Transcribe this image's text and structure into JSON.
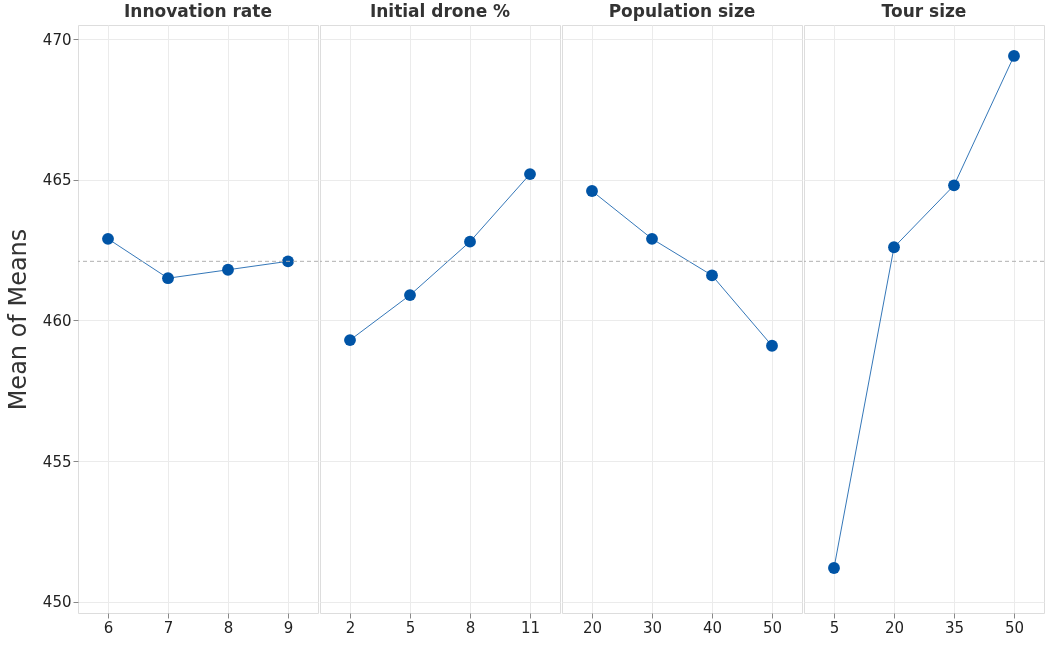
{
  "chart_data": [
    {
      "type": "line",
      "title": "Innovation rate",
      "ylabel": "Mean of Means",
      "categories": [
        "6",
        "7",
        "8",
        "9"
      ],
      "values": [
        462.9,
        461.5,
        461.8,
        462.1
      ],
      "color": "#0054a6",
      "ylim": [
        449.6,
        470.5
      ],
      "yticks": [
        450,
        455,
        460,
        465,
        470
      ],
      "grid": true,
      "marker": "circle",
      "line_style": "solid",
      "ref_lines": [
        {
          "axis": "y",
          "value": 462.1,
          "line_style": "dashed",
          "color": "#b0b0b0"
        }
      ]
    },
    {
      "type": "line",
      "title": "Initial drone %",
      "categories": [
        "2",
        "5",
        "8",
        "11"
      ],
      "values": [
        459.3,
        460.9,
        462.8,
        465.2
      ],
      "color": "#0054a6",
      "ylim": [
        449.6,
        470.5
      ],
      "yticks": [
        450,
        455,
        460,
        465,
        470
      ],
      "grid": true,
      "marker": "circle",
      "line_style": "solid",
      "tick_labels": "x",
      "ref_lines": [
        {
          "axis": "y",
          "value": 462.1,
          "line_style": "dashed",
          "color": "#b0b0b0"
        }
      ]
    },
    {
      "type": "line",
      "title": "Population size",
      "categories": [
        "20",
        "30",
        "40",
        "50"
      ],
      "values": [
        464.6,
        462.9,
        461.6,
        459.1
      ],
      "color": "#0054a6",
      "ylim": [
        449.6,
        470.5
      ],
      "yticks": [
        450,
        455,
        460,
        465,
        470
      ],
      "grid": true,
      "marker": "circle",
      "line_style": "solid",
      "tick_labels": "x",
      "ref_lines": [
        {
          "axis": "y",
          "value": 462.1,
          "line_style": "dashed",
          "color": "#b0b0b0"
        }
      ]
    },
    {
      "type": "line",
      "title": "Tour size",
      "categories": [
        "5",
        "20",
        "35",
        "50"
      ],
      "values": [
        451.2,
        462.6,
        464.8,
        469.4
      ],
      "color": "#0054a6",
      "ylim": [
        449.6,
        470.5
      ],
      "yticks": [
        450,
        455,
        460,
        465,
        470
      ],
      "grid": true,
      "marker": "circle",
      "line_style": "solid",
      "tick_labels": "x",
      "ref_lines": [
        {
          "axis": "y",
          "value": 462.1,
          "line_style": "dashed",
          "color": "#b0b0b0"
        }
      ]
    }
  ]
}
